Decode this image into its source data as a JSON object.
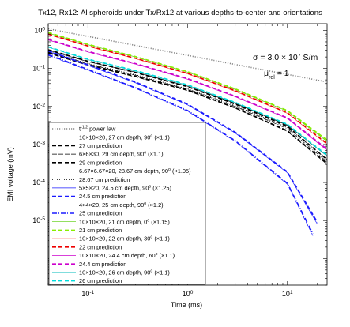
{
  "chart_data": {
    "type": "line",
    "title": "Tx12, Rx12: Al spheroids under Tx/Rx12 at various depths-to-center and orientations",
    "xlabel": "Time (ms)",
    "ylabel": "EMI voltage (mV)",
    "xscale": "log",
    "yscale": "log",
    "xlim": [
      0.04,
      25
    ],
    "ylim": [
      2e-07,
      1.5
    ],
    "xticks": [
      {
        "value": 0.1,
        "base": "10",
        "exp": "-1"
      },
      {
        "value": 1,
        "base": "10",
        "exp": "0"
      },
      {
        "value": 10,
        "base": "10",
        "exp": "1"
      }
    ],
    "yticks": [
      {
        "value": 1,
        "base": "10",
        "exp": "0"
      },
      {
        "value": 0.1,
        "base": "10",
        "exp": "-1"
      },
      {
        "value": 0.01,
        "base": "10",
        "exp": "-2"
      },
      {
        "value": 0.001,
        "base": "10",
        "exp": "-3"
      },
      {
        "value": 0.0001,
        "base": "10",
        "exp": "-4"
      },
      {
        "value": 1e-05,
        "base": "10",
        "exp": "-5"
      }
    ],
    "annotations": {
      "sigma_prefix": "σ = 3.0 × 10",
      "sigma_exp": "7",
      "sigma_unit": " S/m",
      "mu_prefix": "μ",
      "mu_sub": "rel",
      "mu_value": " = 1"
    },
    "legend_position": "bottom-left",
    "series": [
      {
        "name": "t⁻¹ᐟ² power law",
        "legend_main": "t",
        "legend_sup": "-1/2",
        "legend_rest": " power law",
        "color": "#888888",
        "dash": "1.2,1.8",
        "width": 1.6,
        "x": [
          0.04,
          25
        ],
        "y": [
          1.1,
          0.044
        ]
      },
      {
        "name": "10×10×20, 27 cm depth, 90° (×1.1)",
        "legend_main": "10×10×20, 27 cm depth, 90",
        "legend_sup": "o",
        "legend_rest": " (×1.1)",
        "color": "#000000",
        "dash": "",
        "width": 0.7,
        "x": [
          0.04,
          0.1,
          0.3,
          1,
          3,
          10,
          25
        ],
        "y": [
          0.3,
          0.15,
          0.08,
          0.034,
          0.012,
          0.0032,
          0.0005
        ]
      },
      {
        "name": "27 cm prediction",
        "legend_main": "27 cm prediction",
        "color": "#000000",
        "dash": "5,3",
        "width": 1.6,
        "x": [
          0.04,
          0.1,
          0.3,
          1,
          3,
          10,
          25
        ],
        "y": [
          0.31,
          0.155,
          0.078,
          0.033,
          0.0115,
          0.003,
          0.0004
        ]
      },
      {
        "name": "6×6×30, 29 cm depth, 90° (×1.1)",
        "legend_main": "6×6×30, 29 cm depth, 90",
        "legend_sup": "o",
        "legend_rest": " (×1.1)",
        "color": "#000000",
        "dash": "6,2",
        "width": 0.7,
        "x": [
          0.04,
          0.1,
          0.3,
          1,
          3,
          10,
          25
        ],
        "y": [
          0.25,
          0.12,
          0.06,
          0.026,
          0.009,
          0.0022,
          0.0003
        ]
      },
      {
        "name": "29 cm prediction",
        "legend_main": "29 cm prediction",
        "color": "#000000",
        "dash": "5,3",
        "width": 1.6,
        "x": [
          0.04,
          0.1,
          0.3,
          1,
          3,
          10,
          25
        ],
        "y": [
          0.26,
          0.125,
          0.062,
          0.027,
          0.0092,
          0.0023,
          0.00032
        ]
      },
      {
        "name": "6.67×6.67×20, 28.67 cm depth, 90° (×1.05)",
        "legend_main": "6.67×6.67×20, 28.67 cm depth, 90",
        "legend_sup": "o",
        "legend_rest": " (×1.05)",
        "color": "#000000",
        "dash": "6,2,1,2",
        "width": 0.7,
        "x": [
          0.04,
          0.1,
          0.3,
          1,
          3,
          10,
          25
        ],
        "y": [
          0.27,
          0.13,
          0.066,
          0.028,
          0.01,
          0.0026,
          0.00035
        ]
      },
      {
        "name": "28.67 cm prediction",
        "legend_main": "28.67 cm prediction",
        "color": "#000000",
        "dash": "1,2",
        "width": 1.0,
        "x": [
          0.04,
          0.1,
          0.3,
          1,
          3,
          10,
          25
        ],
        "y": [
          0.28,
          0.135,
          0.068,
          0.029,
          0.0105,
          0.0028,
          0.0004
        ]
      },
      {
        "name": "5×5×20, 24.5 cm depth, 90° (×1.25)",
        "legend_main": "5×5×20, 24.5 cm depth, 90",
        "legend_sup": "o",
        "legend_rest": " (×1.25)",
        "color": "#1a1aff",
        "dash": "",
        "width": 0.7,
        "x": [
          0.04,
          0.1,
          0.3,
          1,
          3,
          10,
          20
        ],
        "y": [
          0.28,
          0.12,
          0.042,
          0.011,
          0.002,
          0.00018,
          8e-06
        ]
      },
      {
        "name": "24.5 cm prediction",
        "legend_main": "24.5 cm prediction",
        "color": "#1a1aff",
        "dash": "5,3",
        "width": 1.6,
        "x": [
          0.04,
          0.1,
          0.3,
          1,
          3,
          10,
          20
        ],
        "y": [
          0.29,
          0.125,
          0.044,
          0.0115,
          0.0021,
          0.00019,
          9e-06
        ]
      },
      {
        "name": "4×4×20, 25 cm depth, 90° (×1.2)",
        "legend_main": "4×4×20, 25 cm depth, 90",
        "legend_sup": "o",
        "legend_rest": " (×1.2)",
        "color": "#1a1aff",
        "dash": "6,2",
        "width": 0.7,
        "x": [
          0.04,
          0.1,
          0.3,
          1,
          3,
          10,
          18
        ],
        "y": [
          0.22,
          0.09,
          0.03,
          0.0075,
          0.0012,
          9e-05,
          4e-06
        ]
      },
      {
        "name": "25 cm prediction",
        "legend_main": "25 cm prediction",
        "color": "#1a1aff",
        "dash": "6,2,1,2",
        "width": 1.6,
        "x": [
          0.04,
          0.1,
          0.3,
          1,
          3,
          10,
          18
        ],
        "y": [
          0.23,
          0.094,
          0.031,
          0.0078,
          0.00125,
          9.5e-05,
          4.5e-06
        ]
      },
      {
        "name": "10×10×20, 21 cm depth, 0° (×1.15)",
        "legend_main": "10×10×20, 21 cm depth, 0",
        "legend_sup": "o",
        "legend_rest": " (×1.15)",
        "color": "#55cc00",
        "dash": "",
        "width": 0.7,
        "x": [
          0.04,
          0.1,
          0.3,
          1,
          3,
          10,
          25
        ],
        "y": [
          0.85,
          0.42,
          0.2,
          0.08,
          0.028,
          0.0075,
          0.0012
        ]
      },
      {
        "name": "21 cm prediction",
        "legend_main": "21 cm prediction",
        "color": "#88ee00",
        "dash": "5,3",
        "width": 1.6,
        "x": [
          0.04,
          0.1,
          0.3,
          1,
          3,
          10,
          25
        ],
        "y": [
          0.88,
          0.43,
          0.205,
          0.082,
          0.029,
          0.0078,
          0.0013
        ]
      },
      {
        "name": "10×10×20, 22 cm depth, 30° (×1.1)",
        "legend_main": "10×10×20, 22 cm depth, 30",
        "legend_sup": "o",
        "legend_rest": " (×1.1)",
        "color": "#ff4444",
        "dash": "",
        "width": 0.7,
        "x": [
          0.04,
          0.1,
          0.3,
          1,
          3,
          10,
          25
        ],
        "y": [
          0.78,
          0.38,
          0.18,
          0.072,
          0.025,
          0.0066,
          0.001
        ]
      },
      {
        "name": "22 cm prediction",
        "legend_main": "22 cm prediction",
        "color": "#ee0000",
        "dash": "5,3",
        "width": 1.6,
        "x": [
          0.04,
          0.1,
          0.3,
          1,
          3,
          10,
          25
        ],
        "y": [
          0.8,
          0.39,
          0.185,
          0.074,
          0.026,
          0.0068,
          0.00105
        ]
      },
      {
        "name": "10×10×20, 24.4 cm depth, 60° (×1.1)",
        "legend_main": "10×10×20, 24.4 cm depth, 60",
        "legend_sup": "o",
        "legend_rest": " (×1.1)",
        "color": "#cc00cc",
        "dash": "",
        "width": 0.7,
        "x": [
          0.04,
          0.1,
          0.3,
          1,
          3,
          10,
          25
        ],
        "y": [
          0.56,
          0.27,
          0.13,
          0.052,
          0.018,
          0.0048,
          0.0007
        ]
      },
      {
        "name": "24.4 cm prediction",
        "legend_main": "24.4 cm prediction",
        "color": "#cc00cc",
        "dash": "5,3",
        "width": 1.6,
        "x": [
          0.04,
          0.1,
          0.3,
          1,
          3,
          10,
          25
        ],
        "y": [
          0.58,
          0.28,
          0.134,
          0.054,
          0.0186,
          0.005,
          0.00075
        ]
      },
      {
        "name": "10×10×20, 26 cm depth, 90° (×1.1)",
        "legend_main": "10×10×20, 26 cm depth, 90",
        "legend_sup": "o",
        "legend_rest": " (×1.1)",
        "color": "#00bbbb",
        "dash": "",
        "width": 0.7,
        "x": [
          0.04,
          0.1,
          0.3,
          1,
          3,
          10,
          25
        ],
        "y": [
          0.36,
          0.17,
          0.085,
          0.036,
          0.0125,
          0.0033,
          0.0005
        ]
      },
      {
        "name": "26 cm prediction",
        "legend_main": "26 cm prediction",
        "color": "#00dddd",
        "dash": "5,3",
        "width": 1.6,
        "x": [
          0.04,
          0.1,
          0.3,
          1,
          3,
          10,
          25
        ],
        "y": [
          0.37,
          0.175,
          0.088,
          0.037,
          0.0128,
          0.0034,
          0.00052
        ]
      }
    ]
  }
}
